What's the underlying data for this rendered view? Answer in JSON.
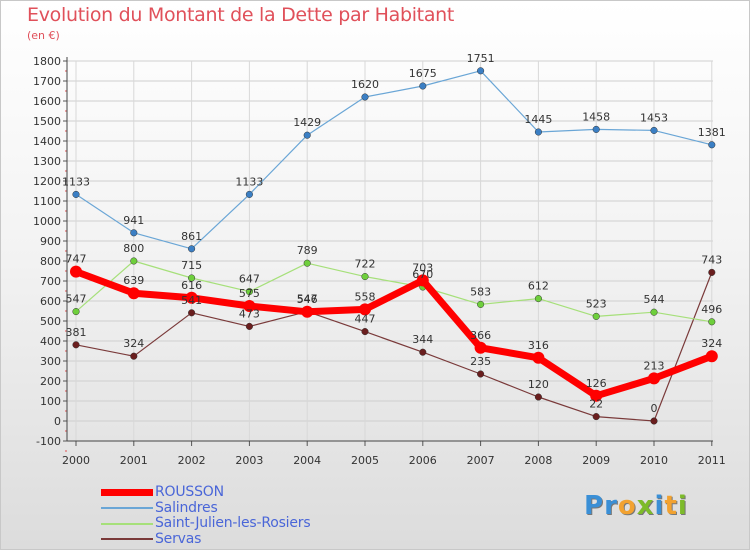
{
  "header": {
    "title": "Evolution du Montant de la Dette par Habitant",
    "subtitle": "(en €)"
  },
  "chart_data": {
    "type": "line",
    "title": "Evolution du Montant de la Dette par Habitant",
    "subtitle": "(en €)",
    "xlabel": "",
    "ylabel": "",
    "x": [
      "2000",
      "2001",
      "2002",
      "2003",
      "2004",
      "2005",
      "2006",
      "2007",
      "2008",
      "2009",
      "2010",
      "2011"
    ],
    "ylim": [
      -100,
      1800
    ],
    "yticks": [
      -100,
      0,
      100,
      200,
      300,
      400,
      500,
      600,
      700,
      800,
      900,
      1000,
      1100,
      1200,
      1300,
      1400,
      1500,
      1600,
      1700,
      1800
    ],
    "grid": true,
    "legend_position": "bottom-left",
    "series": [
      {
        "name": "ROUSSON",
        "color": "#ff0000",
        "marker": "#ff0000",
        "values": [
          747,
          639,
          616,
          575,
          546,
          558,
          703,
          366,
          316,
          126,
          213,
          324
        ]
      },
      {
        "name": "Salindres",
        "color": "#6aa6d6",
        "marker": "#3b7fc4",
        "values": [
          1133,
          941,
          861,
          1133,
          1429,
          1620,
          1675,
          1751,
          1445,
          1458,
          1453,
          1381
        ]
      },
      {
        "name": "Saint-Julien-les-Rosiers",
        "color": "#a6e07a",
        "marker": "#6ecf3c",
        "values": [
          547,
          800,
          715,
          647,
          789,
          722,
          670,
          583,
          612,
          523,
          544,
          496
        ]
      },
      {
        "name": "Servas",
        "color": "#7a3a3a",
        "marker": "#6a1e1e",
        "values": [
          381,
          324,
          541,
          473,
          547,
          447,
          344,
          235,
          120,
          22,
          0,
          743
        ]
      }
    ]
  },
  "logo": {
    "letters": [
      "P",
      "r",
      "o",
      "x",
      "i",
      "t",
      "i"
    ],
    "colors": [
      "#3a8fd6",
      "#3a8fd6",
      "#f2a230",
      "#7dbb2a",
      "#3a8fd6",
      "#f2a230",
      "#7dbb2a"
    ]
  }
}
